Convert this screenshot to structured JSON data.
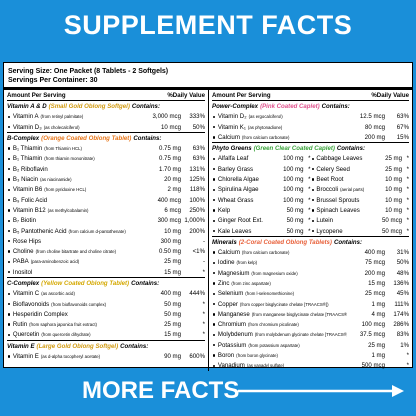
{
  "header": {
    "title": "SUPPLEMENT FACTS"
  },
  "panel": {
    "serving_size": "Serving Size: One Packet (8 Tablets - 2 Softgels)",
    "servings_per_container": "Servings Per Container: 30",
    "columns": [
      {
        "amount_heading": "Amount Per Serving",
        "dv_heading": "%Daily Value",
        "sections": [
          {
            "title": "Vitamin A & D",
            "subtitle": "(Small Gold Oblong Softgel)",
            "contains": "Contains:",
            "color": "#d19a10",
            "items": [
              {
                "name": "Vitamin A",
                "detail": "(from retinyl palmitate)",
                "amount": "3,000 mcg",
                "dv": "333%"
              },
              {
                "name": "Vitamin D₃",
                "detail": "(as cholecalciferol)",
                "amount": "10 mcg",
                "dv": "50%"
              }
            ]
          },
          {
            "title": "B-Complex",
            "subtitle": "(Orange Coated Oblong Tablet)",
            "contains": "Contains:",
            "color": "#e8761a",
            "items": [
              {
                "name": "B₁ Thiamin",
                "detail": "(from Thiamin HCL)",
                "amount": "0.75 mg",
                "dv": "63%"
              },
              {
                "name": "B₁ Thiamin",
                "detail": "(from thiamin mononitrate)",
                "amount": "0.75 mg",
                "dv": "63%"
              },
              {
                "name": "B₂ Riboflavin",
                "amount": "1.70 mg",
                "dv": "131%"
              },
              {
                "name": "B₃ Niacin",
                "detail": "(as niacinamide)",
                "amount": "20 mg",
                "dv": "125%"
              },
              {
                "name": "Vitamin B6",
                "detail": "(from pyridoxine HCL)",
                "amount": "2 mg",
                "dv": "118%"
              },
              {
                "name": "B₉ Folic Acid",
                "amount": "400 mcg",
                "dv": "100%"
              },
              {
                "name": "Vitamin B12",
                "detail": "(as methylcobalamin)",
                "amount": "6 mcg",
                "dv": "250%"
              },
              {
                "name": "B₇ Biotin",
                "amount": "300 mcg",
                "dv": "1,000%"
              },
              {
                "name": "B₅ Pantothenic Acid",
                "detail": "(from calcium d-pantothenate)",
                "amount": "10 mg",
                "dv": "200%"
              },
              {
                "name": "Rose Hips",
                "amount": "300 mg",
                "dv": "-"
              },
              {
                "name": "Choline",
                "detail": "(from choline bitartrate and choline citrate)",
                "amount": "0.50 mg",
                "dv": "<1%"
              },
              {
                "name": "PABA",
                "detail": "(para-aminobenzoic acid)",
                "amount": "25 mg",
                "dv": "-"
              },
              {
                "name": "Inositol",
                "amount": "15 mg",
                "dv": "*"
              }
            ]
          },
          {
            "title": "C-Complex",
            "subtitle": "(Yellow Coated Oblong Tablet)",
            "contains": "Contains:",
            "color": "#d4a800",
            "items": [
              {
                "name": "Vitamin C",
                "detail": "(as ascorbic acid)",
                "amount": "400 mg",
                "dv": "444%"
              },
              {
                "name": "Bioflavonoids",
                "detail": "(from bioflavonoids complex)",
                "amount": "50 mg",
                "dv": "*"
              },
              {
                "name": "Hesperidin Complex",
                "amount": "50 mg",
                "dv": "*"
              },
              {
                "name": "Rutin",
                "detail": "(from saphora japonica fruit extract)",
                "amount": "25 mg",
                "dv": "*"
              },
              {
                "name": "Quercetin",
                "detail": "(from quercetin dihydrate)",
                "amount": "15 mg",
                "dv": "*"
              }
            ]
          },
          {
            "title": "Vitamin E",
            "subtitle": "(Large Gold Oblong Softgel)",
            "contains": "Contains:",
            "color": "#d19a10",
            "items": [
              {
                "name": "Vitamin E",
                "detail": "(as d-alpha tocopheryl acetate)",
                "amount": "90 mg",
                "dv": "600%"
              }
            ]
          }
        ]
      },
      {
        "amount_heading": "Amount Per Serving",
        "dv_heading": "%Daily Value",
        "sections": [
          {
            "title": "Power-Complex",
            "subtitle": "(Pink Coated Caplet)",
            "contains": "Contains:",
            "color": "#e0508c",
            "items": [
              {
                "name": "Vitamin D₂",
                "detail": "(as ergocalciferol)",
                "amount": "12.5 mcg",
                "dv": "63%"
              },
              {
                "name": "Vitamin K₁",
                "detail": "(as phytonadione)",
                "amount": "80 mcg",
                "dv": "67%"
              },
              {
                "name": "Calcium",
                "detail": "(from calcium carbonate)",
                "amount": "200 mg",
                "dv": "15%"
              }
            ]
          },
          {
            "title": "Phyto Greens",
            "subtitle": "(Green Clear Coated Caplet)",
            "contains": "Contains:",
            "color": "#3aa33a",
            "pairs": [
              [
                {
                  "name": "Alfalfa Leaf",
                  "amount": "100 mg",
                  "dv": "*"
                },
                {
                  "name": "Cabbage Leaves",
                  "amount": "25 mg",
                  "dv": "*"
                }
              ],
              [
                {
                  "name": "Barley Grass",
                  "amount": "100 mg",
                  "dv": "*"
                },
                {
                  "name": "Celery Seed",
                  "amount": "25 mg",
                  "dv": "*"
                }
              ],
              [
                {
                  "name": "Chlorella Algae",
                  "amount": "100 mg",
                  "dv": "*"
                },
                {
                  "name": "Beet Root",
                  "amount": "10 mg",
                  "dv": "*"
                }
              ],
              [
                {
                  "name": "Spirulina Algae",
                  "amount": "100 mg",
                  "dv": "*"
                },
                {
                  "name": "Broccoli",
                  "detail": "(aerial parts)",
                  "amount": "10 mg",
                  "dv": "*"
                }
              ],
              [
                {
                  "name": "Wheat Grass",
                  "amount": "100 mg",
                  "dv": "*"
                },
                {
                  "name": "Brussel Sprouts",
                  "amount": "10 mg",
                  "dv": "*"
                }
              ],
              [
                {
                  "name": "Kelp",
                  "amount": "50 mg",
                  "dv": "*"
                },
                {
                  "name": "Spinach Leaves",
                  "amount": "10 mg",
                  "dv": "*"
                }
              ],
              [
                {
                  "name": "Ginger Root Ext.",
                  "amount": "50 mg",
                  "dv": "*"
                },
                {
                  "name": "Lutein",
                  "amount": "50 mcg",
                  "dv": "*"
                }
              ],
              [
                {
                  "name": "Kale Leaves",
                  "amount": "50 mg",
                  "dv": "*"
                },
                {
                  "name": "Lycopene",
                  "amount": "50 mcg",
                  "dv": "*"
                }
              ]
            ]
          },
          {
            "title": "Minerals",
            "subtitle": "(2-Coral Coated Oblong Tablets)",
            "contains": "Contains:",
            "color": "#e8603a",
            "items": [
              {
                "name": "Calcium",
                "detail": "(from calcium carbonate)",
                "amount": "400 mg",
                "dv": "31%"
              },
              {
                "name": "Iodine",
                "detail": "(from kelp)",
                "amount": "75 mcg",
                "dv": "50%"
              },
              {
                "name": "Magnesium",
                "detail": "(from magnesium oxide)",
                "amount": "200 mg",
                "dv": "48%"
              },
              {
                "name": "Zinc",
                "detail": "(from zinc aspartate)",
                "amount": "15 mg",
                "dv": "136%"
              },
              {
                "name": "Selenium",
                "detail": "(from l-selenomethionine)",
                "amount": "25 mcg",
                "dv": "45%"
              },
              {
                "name": "Copper",
                "detail": "(from copper bisglycinate chelate [TRAACS®])",
                "amount": "1 mg",
                "dv": "111%"
              },
              {
                "name": "Manganese",
                "detail": "(from manganese bisglycinate chelate [TRAACS®])",
                "amount": "4 mg",
                "dv": "174%"
              },
              {
                "name": "Chromium",
                "detail": "(from chromium picolinate)",
                "amount": "100 mcg",
                "dv": "286%"
              },
              {
                "name": "Molybdenum",
                "detail": "(from molybdenum glycinate chelate [TRAACS®])",
                "amount": "37.5 mcg",
                "dv": "83%"
              },
              {
                "name": "Potassium",
                "detail": "(from potassium aspartate)",
                "amount": "25 mg",
                "dv": "1%"
              },
              {
                "name": "Boron",
                "detail": "(from boron glycinate)",
                "amount": "1 mg",
                "dv": "*"
              },
              {
                "name": "Vanadium",
                "detail": "(as vanadyl sulfate)",
                "amount": "500 mcg",
                "dv": "*"
              }
            ]
          }
        ]
      }
    ]
  },
  "footer": {
    "label": "MORE FACTS"
  }
}
